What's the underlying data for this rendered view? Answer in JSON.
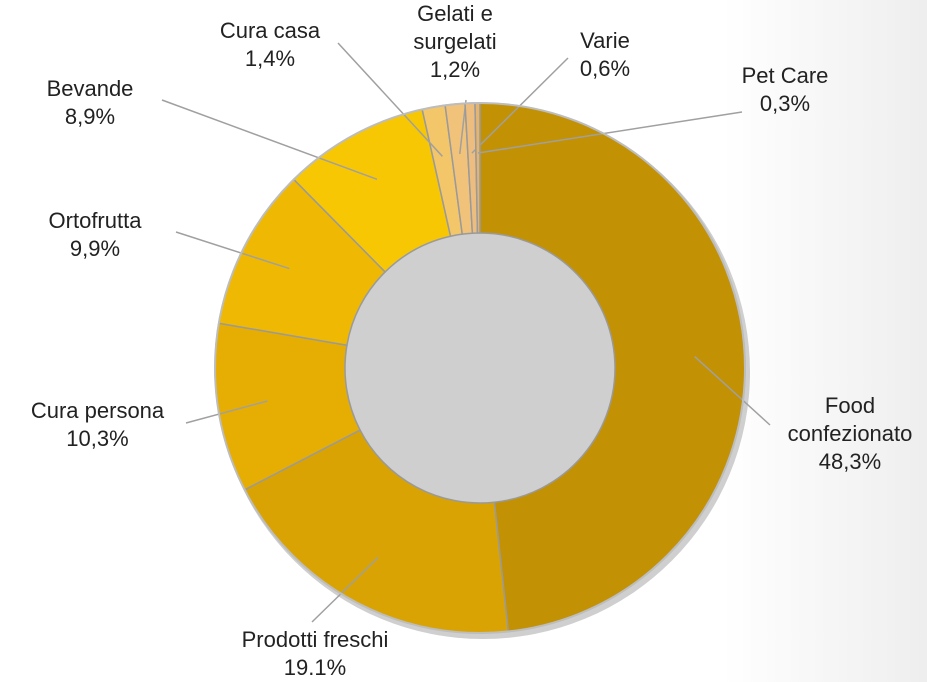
{
  "chart_data": {
    "type": "pie",
    "categories": [
      "Food confezionato",
      "Prodotti freschi",
      "Cura persona",
      "Ortofrutta",
      "Bevande",
      "Cura casa",
      "Gelati e surgelati",
      "Varie",
      "Pet Care"
    ],
    "values": [
      48.3,
      19.1,
      10.3,
      9.9,
      8.9,
      1.4,
      1.2,
      0.6,
      0.3
    ],
    "value_labels": [
      "48,3%",
      "19.1%",
      "10,3%",
      "9,9%",
      "8,9%",
      "1,4%",
      "1,2%",
      "0,6%",
      "0,3%"
    ],
    "colors": [
      "#c39104",
      "#d8a303",
      "#e6ad02",
      "#efb803",
      "#f8c704",
      "#f3c66a",
      "#f1c27a",
      "#ecbd7f",
      "#e5b46f"
    ],
    "donut": true
  }
}
